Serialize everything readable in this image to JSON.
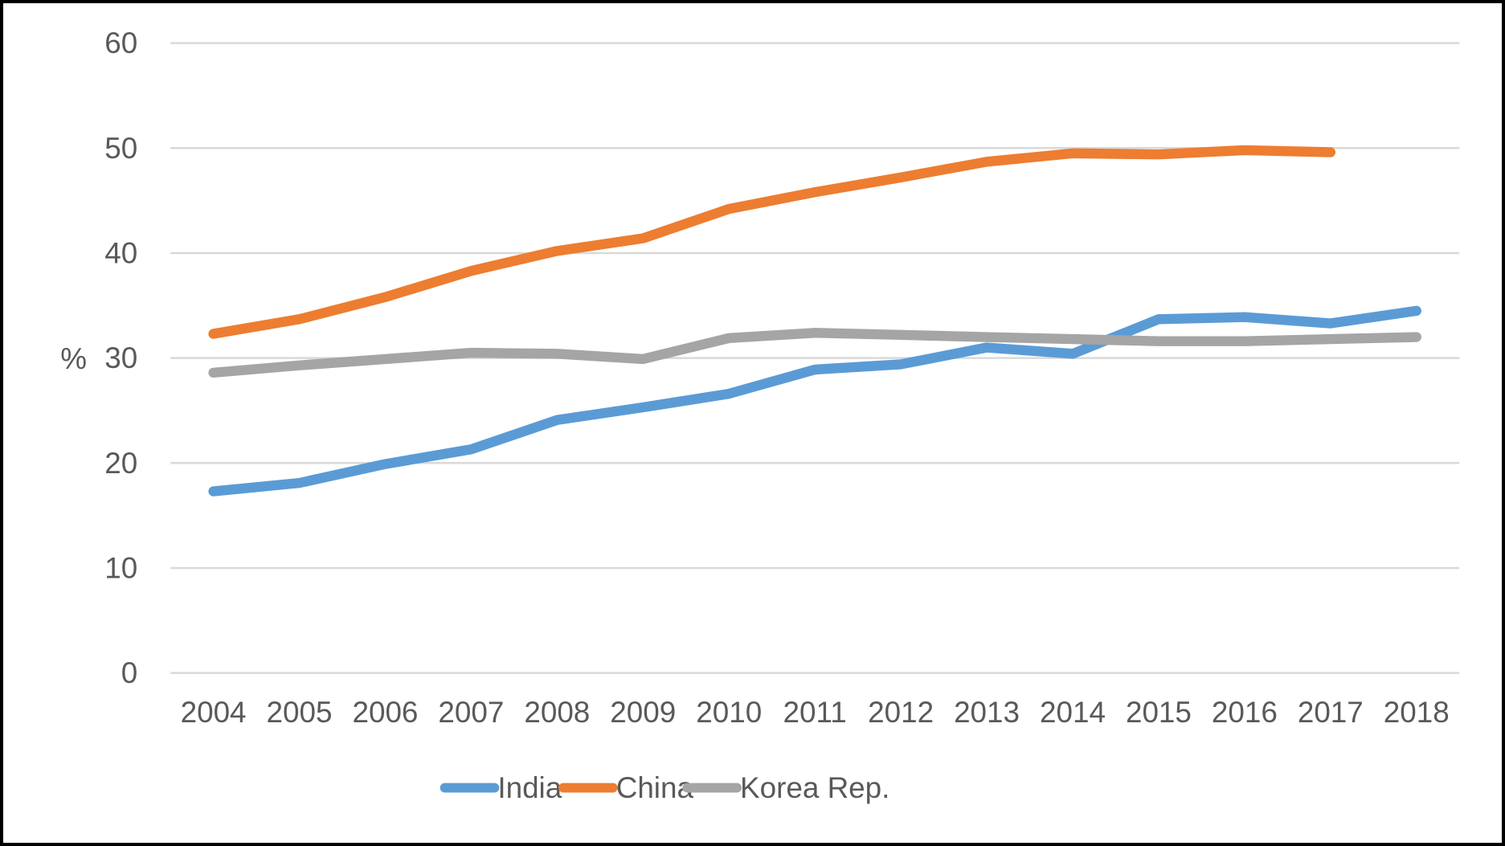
{
  "chart_data": {
    "type": "line",
    "title": "",
    "xlabel": "",
    "ylabel": "%",
    "ylim": [
      0,
      60
    ],
    "yticks": [
      0,
      10,
      20,
      30,
      40,
      50,
      60
    ],
    "grid": true,
    "legend_position": "bottom",
    "categories": [
      "2004",
      "2005",
      "2006",
      "2007",
      "2008",
      "2009",
      "2010",
      "2011",
      "2012",
      "2013",
      "2014",
      "2015",
      "2016",
      "2017",
      "2018"
    ],
    "series": [
      {
        "name": "India",
        "color": "#5B9BD5",
        "values": [
          17.3,
          18.1,
          19.9,
          21.3,
          24.1,
          25.3,
          26.6,
          28.9,
          29.4,
          31.0,
          30.4,
          33.7,
          33.9,
          33.3,
          34.5
        ]
      },
      {
        "name": "China",
        "color": "#ED7D31",
        "values": [
          32.3,
          33.7,
          35.8,
          38.3,
          40.2,
          41.4,
          44.2,
          45.8,
          47.2,
          48.7,
          49.5,
          49.4,
          49.8,
          49.6,
          null
        ]
      },
      {
        "name": "Korea Rep.",
        "color": "#A5A5A5",
        "values": [
          28.6,
          29.3,
          29.9,
          30.5,
          30.4,
          29.9,
          31.9,
          32.4,
          32.2,
          32.0,
          31.8,
          31.6,
          31.6,
          31.8,
          32.0
        ]
      }
    ]
  },
  "colors": {
    "gridline": "#D9D9D9",
    "axis_text": "#595959",
    "background": "#FFFFFF",
    "border": "#000000"
  }
}
